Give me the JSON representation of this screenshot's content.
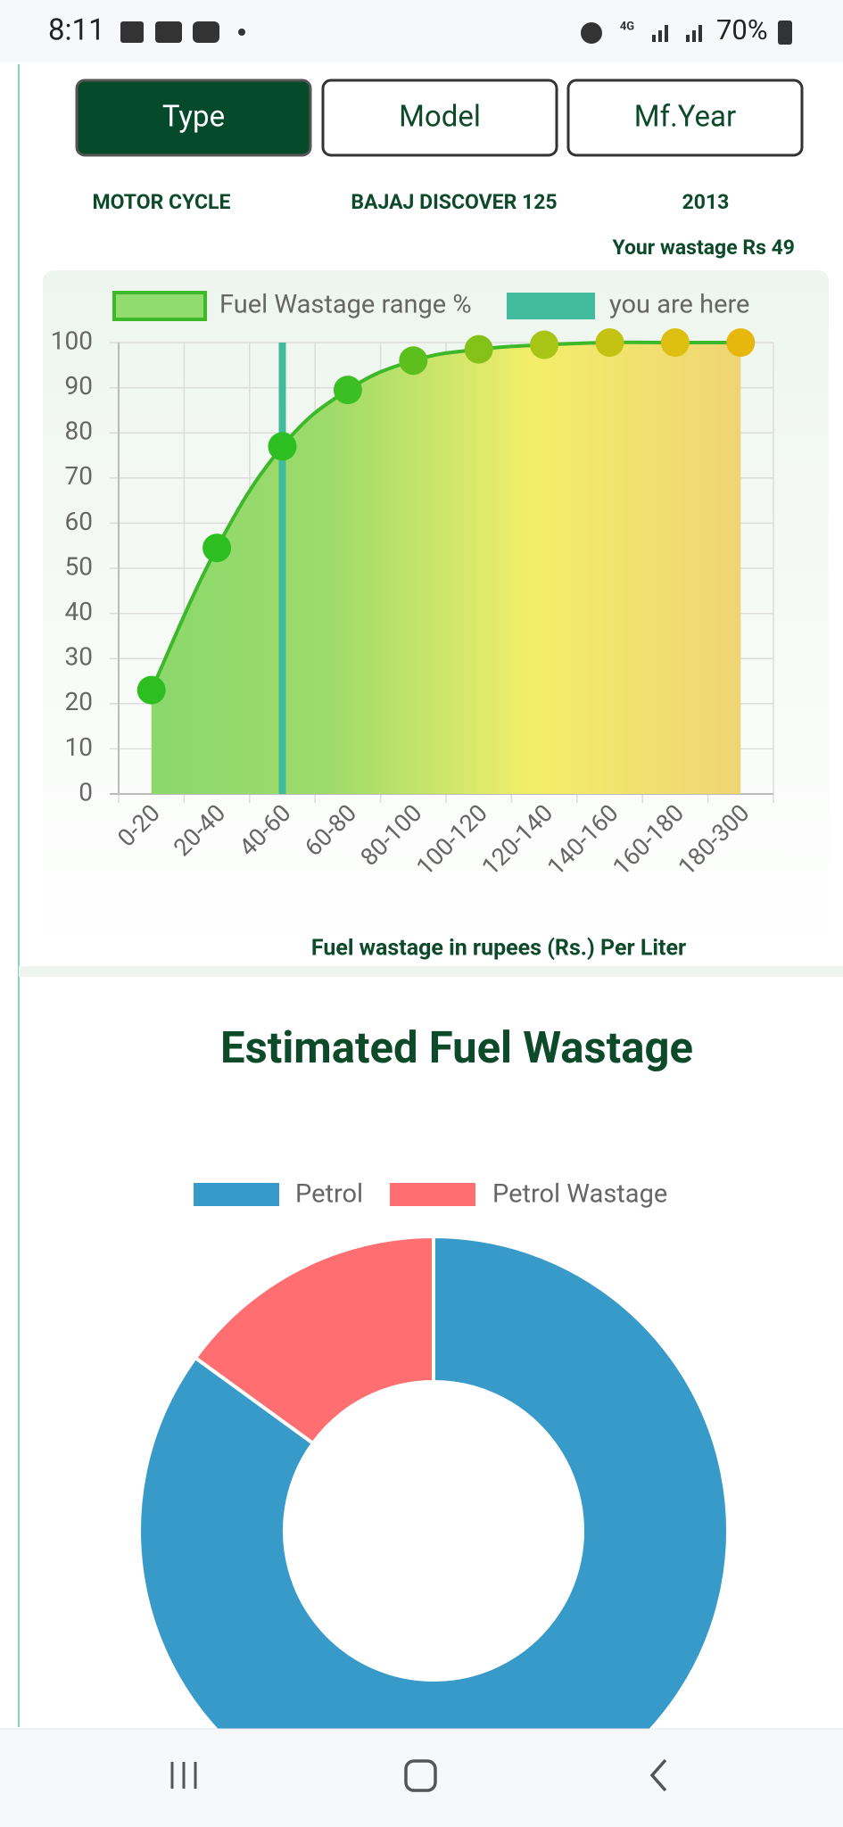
{
  "status_bar": {
    "time": "8:11",
    "network": "4G",
    "battery": "70%"
  },
  "tabs": [
    {
      "label": "Type",
      "active": true
    },
    {
      "label": "Model",
      "active": false
    },
    {
      "label": "Mf.Year",
      "active": false
    }
  ],
  "info": {
    "type": "MOTOR CYCLE",
    "model": "BAJAJ DISCOVER 125",
    "year": "2013",
    "wastage": "Your wastage Rs 49"
  },
  "chart_data": [
    {
      "type": "line",
      "x_label": "Fuel wastage in rupees (Rs.) Per Liter",
      "categories": [
        "0-20",
        "20-40",
        "40-60",
        "60-80",
        "80-100",
        "100-120",
        "120-140",
        "140-160",
        "160-180",
        "180-300"
      ],
      "series": [
        {
          "name": "Fuel Wastage range %",
          "color": "#3cb82a",
          "values": [
            23,
            54.5,
            77,
            89.5,
            96,
            98.5,
            99.5,
            100,
            100,
            100
          ],
          "point_colors": [
            "#2dbf22",
            "#2dbf22",
            "#2dbf22",
            "#3cbf22",
            "#5cbf1e",
            "#84c21a",
            "#a8c414",
            "#c4c212",
            "#dcbf10",
            "#e8b70e"
          ]
        },
        {
          "name": "you are here",
          "type": "bar",
          "color": "#40bc9c",
          "values": [
            null,
            null,
            100,
            null,
            null,
            null,
            null,
            null,
            null,
            null
          ]
        }
      ],
      "ylim": [
        0,
        100
      ],
      "yticks": [
        0,
        10,
        20,
        30,
        40,
        50,
        60,
        70,
        80,
        90,
        100
      ],
      "grid": true,
      "fill": true
    },
    {
      "type": "doughnut",
      "title": "Estimated Fuel Wastage",
      "categories": [
        "Petrol",
        "Petrol Wastage"
      ],
      "values": [
        85,
        15
      ],
      "colors": [
        "#379ac9",
        "#ff6e71"
      ]
    }
  ]
}
